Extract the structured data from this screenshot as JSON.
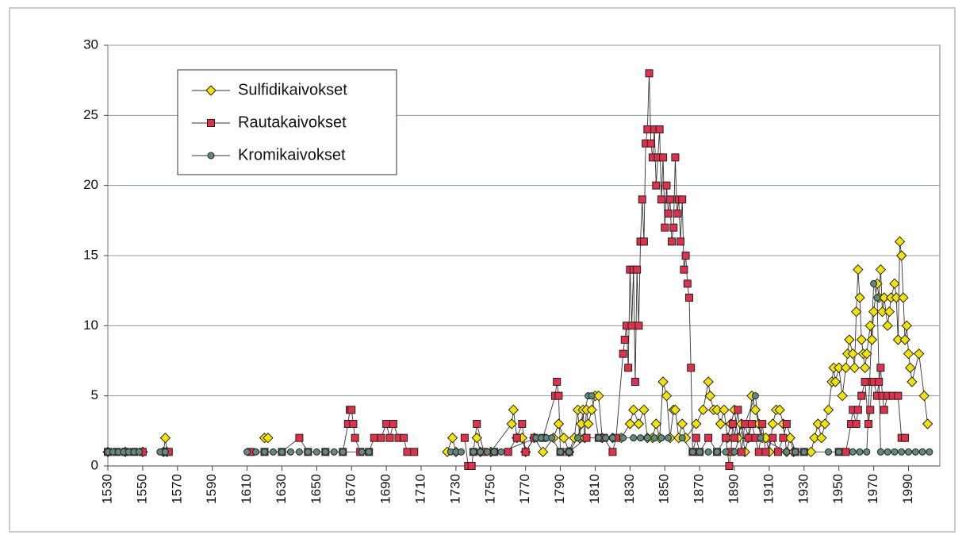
{
  "chart_data": {
    "type": "line",
    "xlim": [
      1530,
      2008
    ],
    "ylim": [
      0,
      30
    ],
    "xticks": [
      1530,
      1550,
      1570,
      1590,
      1610,
      1630,
      1650,
      1670,
      1690,
      1710,
      1730,
      1750,
      1770,
      1790,
      1810,
      1830,
      1850,
      1870,
      1890,
      1910,
      1930,
      1950,
      1970,
      1990
    ],
    "yticks": [
      0,
      5,
      10,
      15,
      20,
      25,
      30
    ],
    "grid": true,
    "legend": "upper left",
    "series": [
      {
        "name": "Sulfidikaivokset",
        "color": "#f2e400",
        "marker": "diamond",
        "x": [
          1530,
          1540,
          1550,
          1555,
          1562,
          1563,
          1564,
          1590,
          1620,
          1622,
          1680,
          1725,
          1728,
          1730,
          1736,
          1742,
          1744,
          1750,
          1762,
          1763,
          1765,
          1768,
          1770,
          1775,
          1780,
          1786,
          1789,
          1792,
          1795,
          1798,
          1800,
          1801,
          1802,
          1803,
          1804,
          1805,
          1806,
          1808,
          1810,
          1812,
          1814,
          1820,
          1825,
          1830,
          1832,
          1835,
          1838,
          1840,
          1843,
          1845,
          1847,
          1849,
          1851,
          1853,
          1855,
          1856,
          1858,
          1860,
          1862,
          1868,
          1872,
          1875,
          1876,
          1878,
          1880,
          1882,
          1884,
          1886,
          1888,
          1890,
          1892,
          1894,
          1896,
          1898,
          1900,
          1902,
          1904,
          1906,
          1908,
          1910,
          1912,
          1914,
          1916,
          1918,
          1920,
          1922,
          1924,
          1934,
          1936,
          1938,
          1940,
          1942,
          1944,
          1946,
          1947,
          1948,
          1950,
          1952,
          1954,
          1955,
          1956,
          1958,
          1959,
          1960,
          1961,
          1962,
          1963,
          1964,
          1965,
          1966,
          1968,
          1969,
          1970,
          1972,
          1973,
          1974,
          1975,
          1976,
          1978,
          1979,
          1980,
          1982,
          1983,
          1984,
          1985,
          1986,
          1987,
          1988,
          1989,
          1990,
          1991,
          1992,
          1996,
          1999,
          2001
        ],
        "values": [
          1,
          1,
          1,
          null,
          1,
          2,
          1,
          null,
          2,
          2,
          null,
          1,
          2,
          1,
          null,
          2,
          1,
          1,
          3,
          4,
          2,
          2,
          1,
          2,
          1,
          2,
          3,
          2,
          1,
          2,
          4,
          2,
          3,
          4,
          2,
          4,
          3,
          4,
          5,
          5,
          2,
          2,
          2,
          3,
          4,
          3,
          4,
          2,
          2,
          3,
          2,
          6,
          5,
          2,
          4,
          4,
          2,
          3,
          2,
          3,
          4,
          6,
          5,
          4,
          4,
          3,
          4,
          2,
          3,
          4,
          2,
          3,
          1,
          2,
          5,
          4,
          3,
          2,
          2,
          1,
          3,
          4,
          4,
          3,
          1,
          2,
          1,
          1,
          2,
          3,
          2,
          3,
          4,
          6,
          7,
          6,
          7,
          5,
          7,
          8,
          9,
          8,
          7,
          11,
          14,
          12,
          9,
          8,
          7,
          8,
          10,
          9,
          11,
          13,
          12,
          14,
          11,
          12,
          10,
          11,
          12,
          13,
          12,
          9,
          16,
          15,
          12,
          9,
          10,
          8,
          7,
          6,
          8,
          5,
          3
        ]
      },
      {
        "name": "Rautakaivokset",
        "color": "#e0304a",
        "marker": "square",
        "x": [
          1530,
          1535,
          1540,
          1545,
          1550,
          1556,
          1563,
          1565,
          1590,
          1612,
          1620,
          1630,
          1640,
          1645,
          1655,
          1665,
          1668,
          1669,
          1670,
          1671,
          1672,
          1675,
          1680,
          1683,
          1687,
          1690,
          1692,
          1694,
          1697,
          1700,
          1702,
          1706,
          1720,
          1735,
          1737,
          1739,
          1740,
          1742,
          1746,
          1752,
          1760,
          1765,
          1768,
          1770,
          1775,
          1780,
          1787,
          1788,
          1789,
          1790,
          1795,
          1805,
          1812,
          1815,
          1820,
          1822,
          1826,
          1827,
          1828,
          1829,
          1830,
          1831,
          1832,
          1833,
          1834,
          1835,
          1836,
          1837,
          1838,
          1839,
          1840,
          1841,
          1842,
          1843,
          1844,
          1845,
          1846,
          1847,
          1848,
          1849,
          1850,
          1851,
          1852,
          1853,
          1854,
          1855,
          1856,
          1857,
          1858,
          1859,
          1860,
          1861,
          1862,
          1863,
          1864,
          1865,
          1866,
          1868,
          1870,
          1875,
          1880,
          1885,
          1887,
          1888,
          1889,
          1890,
          1892,
          1894,
          1896,
          1898,
          1900,
          1902,
          1904,
          1906,
          1908,
          1912,
          1915,
          1918,
          1920,
          1925,
          1930,
          1940,
          1950,
          1954,
          1957,
          1958,
          1960,
          1961,
          1963,
          1965,
          1967,
          1968,
          1969,
          1970,
          1972,
          1973,
          1974,
          1975,
          1976,
          1978,
          1981,
          1984,
          1986,
          1988
        ],
        "values": [
          1,
          1,
          1,
          1,
          1,
          null,
          1,
          1,
          null,
          1,
          1,
          1,
          2,
          1,
          1,
          1,
          3,
          4,
          4,
          3,
          2,
          1,
          1,
          2,
          2,
          3,
          2,
          3,
          2,
          2,
          1,
          1,
          null,
          2,
          0,
          0,
          1,
          3,
          1,
          1,
          1,
          2,
          3,
          1,
          2,
          2,
          5,
          6,
          5,
          1,
          1,
          2,
          2,
          2,
          1,
          2,
          8,
          9,
          10,
          7,
          14,
          10,
          14,
          6,
          14,
          10,
          16,
          19,
          16,
          23,
          24,
          28,
          23,
          22,
          24,
          20,
          22,
          24,
          19,
          22,
          17,
          20,
          18,
          19,
          16,
          17,
          22,
          18,
          19,
          16,
          19,
          14,
          15,
          13,
          12,
          7,
          1,
          2,
          1,
          2,
          1,
          2,
          0,
          1,
          3,
          2,
          4,
          1,
          3,
          2,
          3,
          2,
          1,
          3,
          1,
          2,
          1,
          2,
          3,
          1,
          1,
          null,
          1,
          1,
          3,
          4,
          3,
          4,
          5,
          6,
          3,
          4,
          6,
          6,
          5,
          6,
          7,
          5,
          4,
          5,
          5,
          5,
          2,
          2
        ]
      },
      {
        "name": "Kromikaivokset",
        "color": "#5f8a7c",
        "marker": "circle",
        "x": [
          1530,
          1533,
          1536,
          1539,
          1542,
          1545,
          1548,
          1555,
          1560,
          1563,
          1590,
          1610,
          1615,
          1620,
          1625,
          1630,
          1635,
          1640,
          1645,
          1650,
          1655,
          1660,
          1665,
          1676,
          1680,
          1700,
          1727,
          1730,
          1733,
          1736,
          1740,
          1744,
          1748,
          1752,
          1756,
          1776,
          1779,
          1782,
          1785,
          1790,
          1795,
          1800,
          1806,
          1808,
          1812,
          1816,
          1820,
          1826,
          1832,
          1836,
          1840,
          1844,
          1848,
          1852,
          1860,
          1866,
          1870,
          1875,
          1880,
          1885,
          1890,
          1902,
          1905,
          1920,
          1925,
          1930,
          1944,
          1950,
          1958,
          1962,
          1966,
          1970,
          1972,
          1974,
          1978,
          1982,
          1986,
          1990,
          1994,
          1998,
          2002
        ],
        "values": [
          1,
          1,
          1,
          1,
          1,
          1,
          1,
          null,
          1,
          1,
          null,
          1,
          1,
          1,
          1,
          1,
          1,
          1,
          1,
          1,
          1,
          1,
          1,
          1,
          1,
          null,
          1,
          1,
          1,
          null,
          1,
          1,
          1,
          1,
          1,
          2,
          2,
          2,
          2,
          1,
          1,
          2,
          5,
          5,
          2,
          2,
          2,
          2,
          2,
          2,
          2,
          2,
          2,
          2,
          2,
          1,
          1,
          1,
          1,
          1,
          1,
          5,
          2,
          1,
          1,
          1,
          1,
          1,
          1,
          1,
          1,
          13,
          12,
          1,
          1,
          1,
          1,
          1,
          1,
          1,
          1
        ]
      }
    ]
  }
}
